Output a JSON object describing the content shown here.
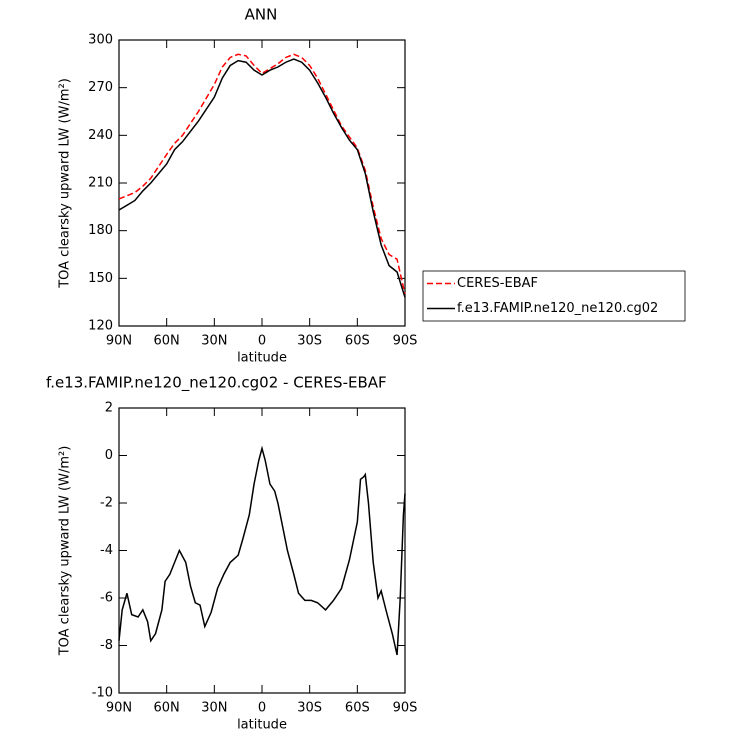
{
  "chart_data": [
    {
      "type": "line",
      "title": "ANN",
      "xlabel": "latitude",
      "ylabel": "TOA clearsky upward LW (W/m²)",
      "x": [
        90,
        80,
        75,
        70,
        60,
        55,
        50,
        40,
        30,
        25,
        20,
        15,
        10,
        5,
        0,
        -5,
        -10,
        -15,
        -20,
        -25,
        -30,
        -35,
        -40,
        -45,
        -50,
        -55,
        -60,
        -65,
        -70,
        -75,
        -80,
        -85,
        -90
      ],
      "series": [
        {
          "name": "CERES-EBAF",
          "color": "#ff0000",
          "style": "dashed",
          "values": [
            200,
            204,
            208,
            213,
            228,
            235,
            240,
            255,
            272,
            283,
            289,
            291,
            290,
            284,
            279,
            282,
            285,
            289,
            291,
            289,
            284,
            276,
            266,
            256,
            246,
            239,
            232,
            218,
            195,
            175,
            165,
            162,
            140
          ]
        },
        {
          "name": "f.e13.FAMIP.ne120_ne120.cg02",
          "color": "#000000",
          "style": "solid",
          "values": [
            193,
            199,
            205,
            210,
            222,
            231,
            236,
            249,
            264,
            276,
            284,
            287,
            286,
            281,
            278,
            281,
            283,
            286,
            288,
            286,
            281,
            273,
            264,
            254,
            245,
            237,
            231,
            216,
            192,
            171,
            158,
            154,
            138
          ]
        }
      ],
      "xlim": [
        90,
        -90
      ],
      "xticks": [
        {
          "value": 90,
          "label": "90N"
        },
        {
          "value": 60,
          "label": "60N"
        },
        {
          "value": 30,
          "label": "30N"
        },
        0,
        {
          "value": -30,
          "label": "30S"
        },
        {
          "value": -60,
          "label": "60S"
        },
        {
          "value": -90,
          "label": "90S"
        }
      ],
      "ylim": [
        120,
        300
      ],
      "yticks": [
        120,
        150,
        180,
        210,
        240,
        270,
        300
      ],
      "legend": "outside right"
    },
    {
      "type": "line",
      "title": "f.e13.FAMIP.ne120_ne120.cg02 - CERES-EBAF",
      "xlabel": "latitude",
      "ylabel": "TOA clearsky upward LW (W/m²)",
      "x": [
        90,
        88,
        85,
        82,
        78,
        75,
        72,
        70,
        67,
        63,
        61,
        58,
        55,
        52,
        48,
        45,
        42,
        39,
        36,
        32,
        28,
        24,
        20,
        15,
        12,
        8,
        5,
        2,
        0,
        -2,
        -5,
        -8,
        -10,
        -13,
        -16,
        -20,
        -23,
        -27,
        -31,
        -35,
        -40,
        -45,
        -50,
        -55,
        -60,
        -62,
        -64,
        -65,
        -67,
        -70,
        -73,
        -75,
        -78,
        -82,
        -85,
        -87,
        -89,
        -90
      ],
      "series": [
        {
          "color": "#000000",
          "style": "solid",
          "values": [
            -7.8,
            -6.5,
            -5.8,
            -6.7,
            -6.8,
            -6.5,
            -7.0,
            -7.8,
            -7.5,
            -6.5,
            -5.3,
            -5.0,
            -4.5,
            -4.0,
            -4.5,
            -5.5,
            -6.2,
            -6.3,
            -7.2,
            -6.6,
            -5.6,
            -5.0,
            -4.5,
            -4.2,
            -3.5,
            -2.5,
            -1.2,
            -0.2,
            0.3,
            -0.2,
            -1.2,
            -1.5,
            -2.0,
            -3.0,
            -4.0,
            -5.0,
            -5.8,
            -6.1,
            -6.1,
            -6.2,
            -6.5,
            -6.1,
            -5.6,
            -4.4,
            -2.8,
            -1.0,
            -0.9,
            -0.8,
            -2.0,
            -4.5,
            -6.0,
            -5.7,
            -6.5,
            -7.5,
            -8.4,
            -6.0,
            -2.5,
            -1.6
          ]
        }
      ],
      "xlim": [
        90,
        -90
      ],
      "xticks": [
        {
          "value": 90,
          "label": "90N"
        },
        {
          "value": 60,
          "label": "60N"
        },
        {
          "value": 30,
          "label": "30N"
        },
        0,
        {
          "value": -30,
          "label": "30S"
        },
        {
          "value": -60,
          "label": "60S"
        },
        {
          "value": -90,
          "label": "90S"
        }
      ],
      "ylim": [
        -10,
        2
      ],
      "yticks": [
        -10,
        -8,
        -6,
        -4,
        -2,
        0,
        2
      ]
    }
  ]
}
